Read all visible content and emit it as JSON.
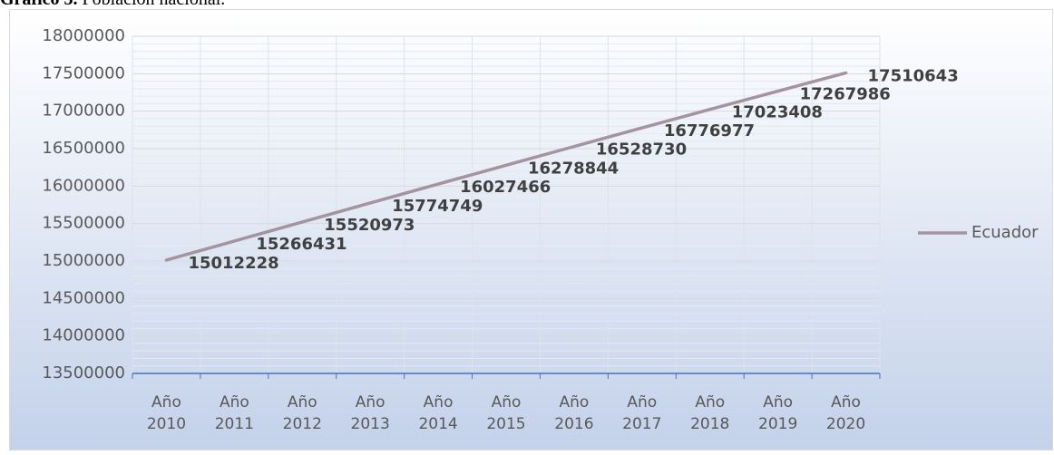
{
  "chart_data": {
    "type": "line",
    "title_label": "Gráfico 3.",
    "title": "Población nacional.",
    "categories": [
      "Año 2010",
      "Año 2011",
      "Año 2012",
      "Año 2013",
      "Año 2014",
      "Año 2015",
      "Año 2016",
      "Año 2017",
      "Año 2018",
      "Año 2019",
      "Año 2020"
    ],
    "series": [
      {
        "name": "Ecuador",
        "color": "#a3949f",
        "values": [
          15012228,
          15266431,
          15520973,
          15774749,
          16027466,
          16278844,
          16528730,
          16776977,
          17023408,
          17267986,
          17510643
        ]
      }
    ],
    "ylim": [
      13500000,
      18000000
    ],
    "yticks": [
      13500000,
      14000000,
      14500000,
      15000000,
      15500000,
      16000000,
      16500000,
      17000000,
      17500000,
      18000000
    ],
    "grid": true,
    "legend": "right",
    "data_labels": true
  }
}
